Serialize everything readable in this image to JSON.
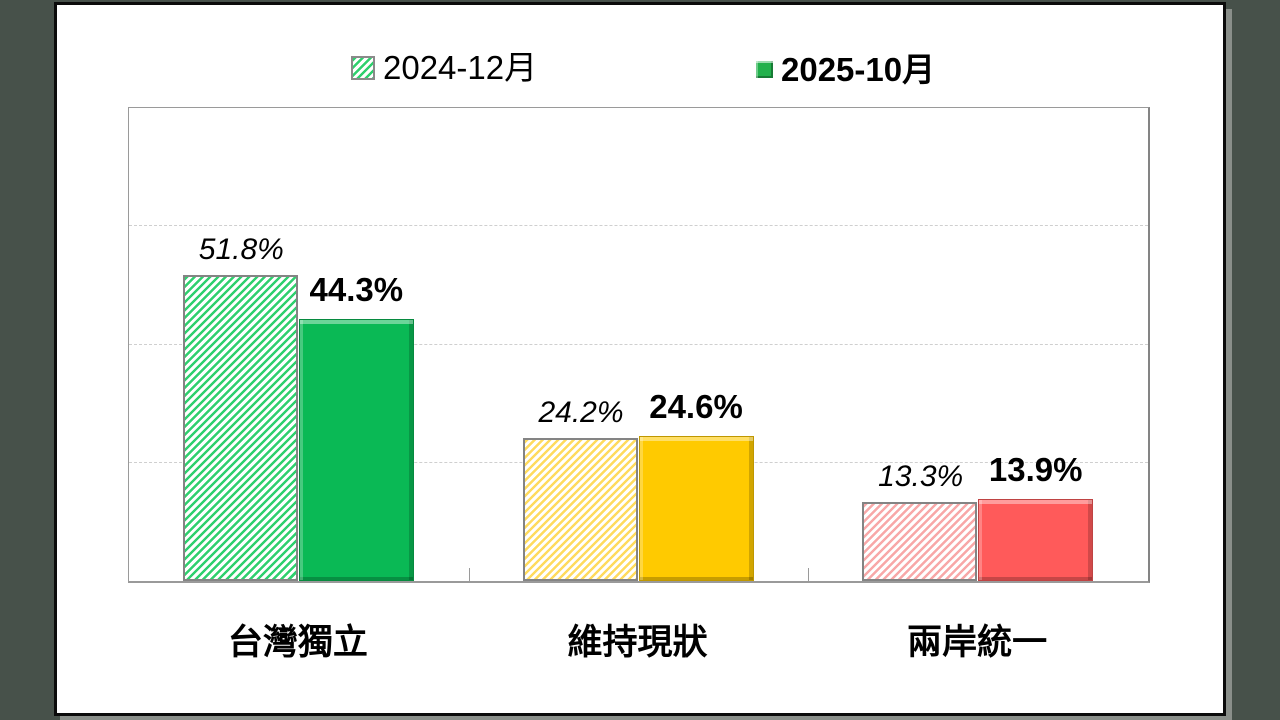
{
  "page": {
    "background": "#47514a",
    "card_background": "#ffffff"
  },
  "legend": {
    "items": [
      {
        "label": "2024-12月",
        "swatch": "hatched-green"
      },
      {
        "label": "2025-10月",
        "swatch": "solid-green"
      }
    ]
  },
  "chart_data": {
    "type": "bar",
    "title": "",
    "categories": [
      "台灣獨立",
      "維持現狀",
      "兩岸統一"
    ],
    "series": [
      {
        "name": "2024-12月",
        "style": "hatched",
        "values": [
          51.8,
          24.2,
          13.3
        ],
        "value_labels": [
          "51.8%",
          "24.2%",
          "13.3%"
        ]
      },
      {
        "name": "2025-10月",
        "style": "solid",
        "values": [
          44.3,
          24.6,
          13.9
        ],
        "value_labels": [
          "44.3%",
          "24.6%",
          "13.9%"
        ]
      }
    ],
    "ylim": [
      0,
      80
    ],
    "gridlines_percent": [
      20,
      40,
      60
    ],
    "grid": "horizontal-dashed",
    "legend_position": "top-center",
    "category_colors": [
      {
        "solid": "#0ab955",
        "stripe": "#2fd06e"
      },
      {
        "solid": "#ffca00",
        "stripe": "#ffdb5e"
      },
      {
        "solid": "#ff5a5a",
        "stripe": "#f8a8a8"
      }
    ]
  }
}
